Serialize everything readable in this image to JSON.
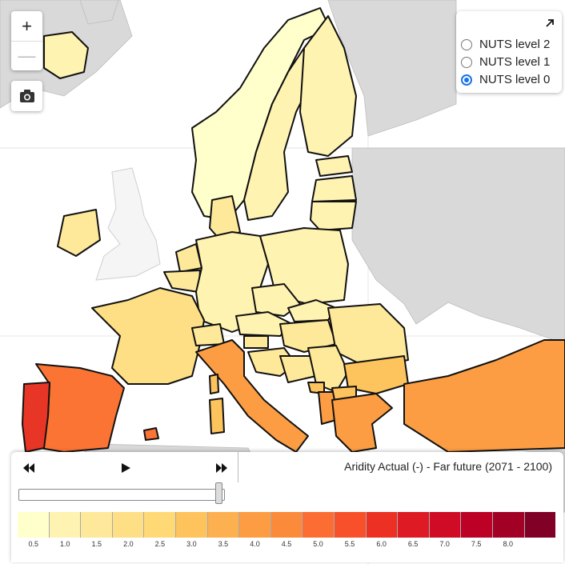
{
  "map": {
    "colors": {
      "sea": "#ffffff",
      "nodata": "#d9d9d9",
      "border": "#111111",
      "class1": "#ffffcc",
      "class2": "#fff3b2",
      "class3": "#fee99a",
      "class4": "#fedf86",
      "class5": "#fdc35d",
      "class6": "#fdac4b",
      "class7": "#fc9d43",
      "class8": "#fc7434",
      "class9": "#f35a2d",
      "class10": "#e83626"
    }
  },
  "zoom": {
    "in_label": "+",
    "out_label": "—"
  },
  "camera": {
    "icon": "camera-icon"
  },
  "layers": {
    "collapse_icon": "arrow-up-right-icon",
    "options": [
      {
        "label": "NUTS level 2",
        "selected": false
      },
      {
        "label": "NUTS level 1",
        "selected": false
      },
      {
        "label": "NUTS level 0",
        "selected": true
      }
    ]
  },
  "player": {
    "rewind_icon": "rewind-icon",
    "play_icon": "play-icon",
    "forward_icon": "fast-forward-icon",
    "title": "Aridity Actual (-) - Far future (2071 - 2100)",
    "slider_value": 1.0
  },
  "legend": {
    "colors": [
      "#ffffcc",
      "#fff3b2",
      "#fee99a",
      "#fedf86",
      "#fed976",
      "#fec35d",
      "#fdb04f",
      "#fd9d43",
      "#fc8a3b",
      "#fc6d33",
      "#f7502a",
      "#ec3023",
      "#de1a24",
      "#cf0b25",
      "#bd0026",
      "#a30026",
      "#800026"
    ],
    "ticks": [
      "0.5",
      "1.0",
      "1.5",
      "2.0",
      "2.5",
      "3.0",
      "3.5",
      "4.0",
      "4.5",
      "5.0",
      "5.5",
      "6.0",
      "6.5",
      "7.0",
      "7.5",
      "8.0"
    ]
  }
}
